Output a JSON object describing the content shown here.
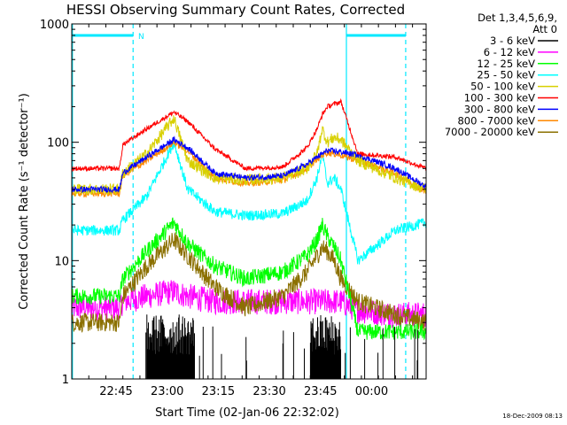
{
  "chart_data": {
    "type": "line",
    "title": "HESSI Observing Summary Count Rates, Corrected",
    "xlabel": "Start Time (02-Jan-06 22:32:02)",
    "ylabel": "Corrected Count Rate (s⁻¹ detector⁻¹)",
    "yscale": "log",
    "ylim": [
      1,
      1000
    ],
    "y_ticks": [
      "1",
      "10",
      "100",
      "1000"
    ],
    "x_range_minutes": [
      0,
      104
    ],
    "x_ticks": [
      {
        "label": "22:45",
        "minute": 13
      },
      {
        "label": "23:00",
        "minute": 28
      },
      {
        "label": "23:15",
        "minute": 43
      },
      {
        "label": "23:30",
        "minute": 58
      },
      {
        "label": "23:45",
        "minute": 73
      },
      {
        "label": "00:00",
        "minute": 88
      }
    ],
    "legend": {
      "header_line1": "Det 1,3,4,5,6,9,",
      "header_line2": "Att 0",
      "placement": "right-outside"
    },
    "series": [
      {
        "name": "3 - 6 keV",
        "color": "#000000"
      },
      {
        "name": "6 - 12 keV",
        "color": "#ff00ff"
      },
      {
        "name": "12 - 25 keV",
        "color": "#00ff00"
      },
      {
        "name": "25 - 50 keV",
        "color": "#00ffff"
      },
      {
        "name": "50 - 100 keV",
        "color": "#d8d000"
      },
      {
        "name": "100 - 300 keV",
        "color": "#ff0000"
      },
      {
        "name": "300 - 800 keV",
        "color": "#0000ff"
      },
      {
        "name": "800 - 7000 keV",
        "color": "#ff8800"
      },
      {
        "name": "7000 - 20000 keV",
        "color": "#8b7000"
      }
    ],
    "profiles": {
      "x_minutes": [
        0,
        14,
        15,
        22,
        30,
        34,
        42,
        51,
        62,
        69,
        72,
        73.5,
        75,
        77,
        79,
        84,
        95,
        104
      ],
      "100 - 300 keV": [
        60,
        60,
        95,
        130,
        180,
        150,
        88,
        60,
        62,
        90,
        130,
        170,
        200,
        210,
        220,
        80,
        75,
        60
      ],
      "300 - 800 keV": [
        40,
        40,
        55,
        75,
        105,
        90,
        55,
        50,
        52,
        65,
        75,
        80,
        85,
        84,
        83,
        78,
        60,
        42
      ],
      "800 - 7000 keV": [
        37,
        37,
        52,
        70,
        100,
        85,
        50,
        45,
        48,
        60,
        72,
        78,
        82,
        80,
        78,
        70,
        55,
        38
      ],
      "50 - 100 keV": [
        40,
        40,
        55,
        80,
        160,
        70,
        50,
        48,
        50,
        60,
        80,
        130,
        100,
        110,
        105,
        70,
        50,
        40
      ],
      "25 - 50 keV": [
        18,
        18,
        22,
        35,
        100,
        40,
        26,
        24,
        25,
        32,
        50,
        80,
        45,
        50,
        40,
        10,
        18,
        21
      ],
      "12 - 25 keV": [
        5,
        5,
        7,
        12,
        21,
        14,
        9,
        7,
        8,
        11,
        15,
        20,
        16,
        13,
        10,
        2.5,
        2.5,
        2.5
      ],
      "7000 - 20000 keV": [
        3,
        3,
        5,
        9,
        15,
        11,
        6,
        4,
        5,
        8,
        11,
        13,
        12,
        10,
        7,
        4.5,
        3.5,
        3
      ],
      "6 - 12 keV": [
        4,
        4,
        4.5,
        5,
        5.5,
        5,
        4.5,
        4.5,
        4.5,
        4.5,
        4.5,
        4.5,
        4.5,
        4.5,
        4.5,
        3.8,
        3.5,
        3.5
      ]
    },
    "markers": {
      "saa_left_label": "N"
    }
  },
  "timestamp": "18-Dec-2009 08:13"
}
